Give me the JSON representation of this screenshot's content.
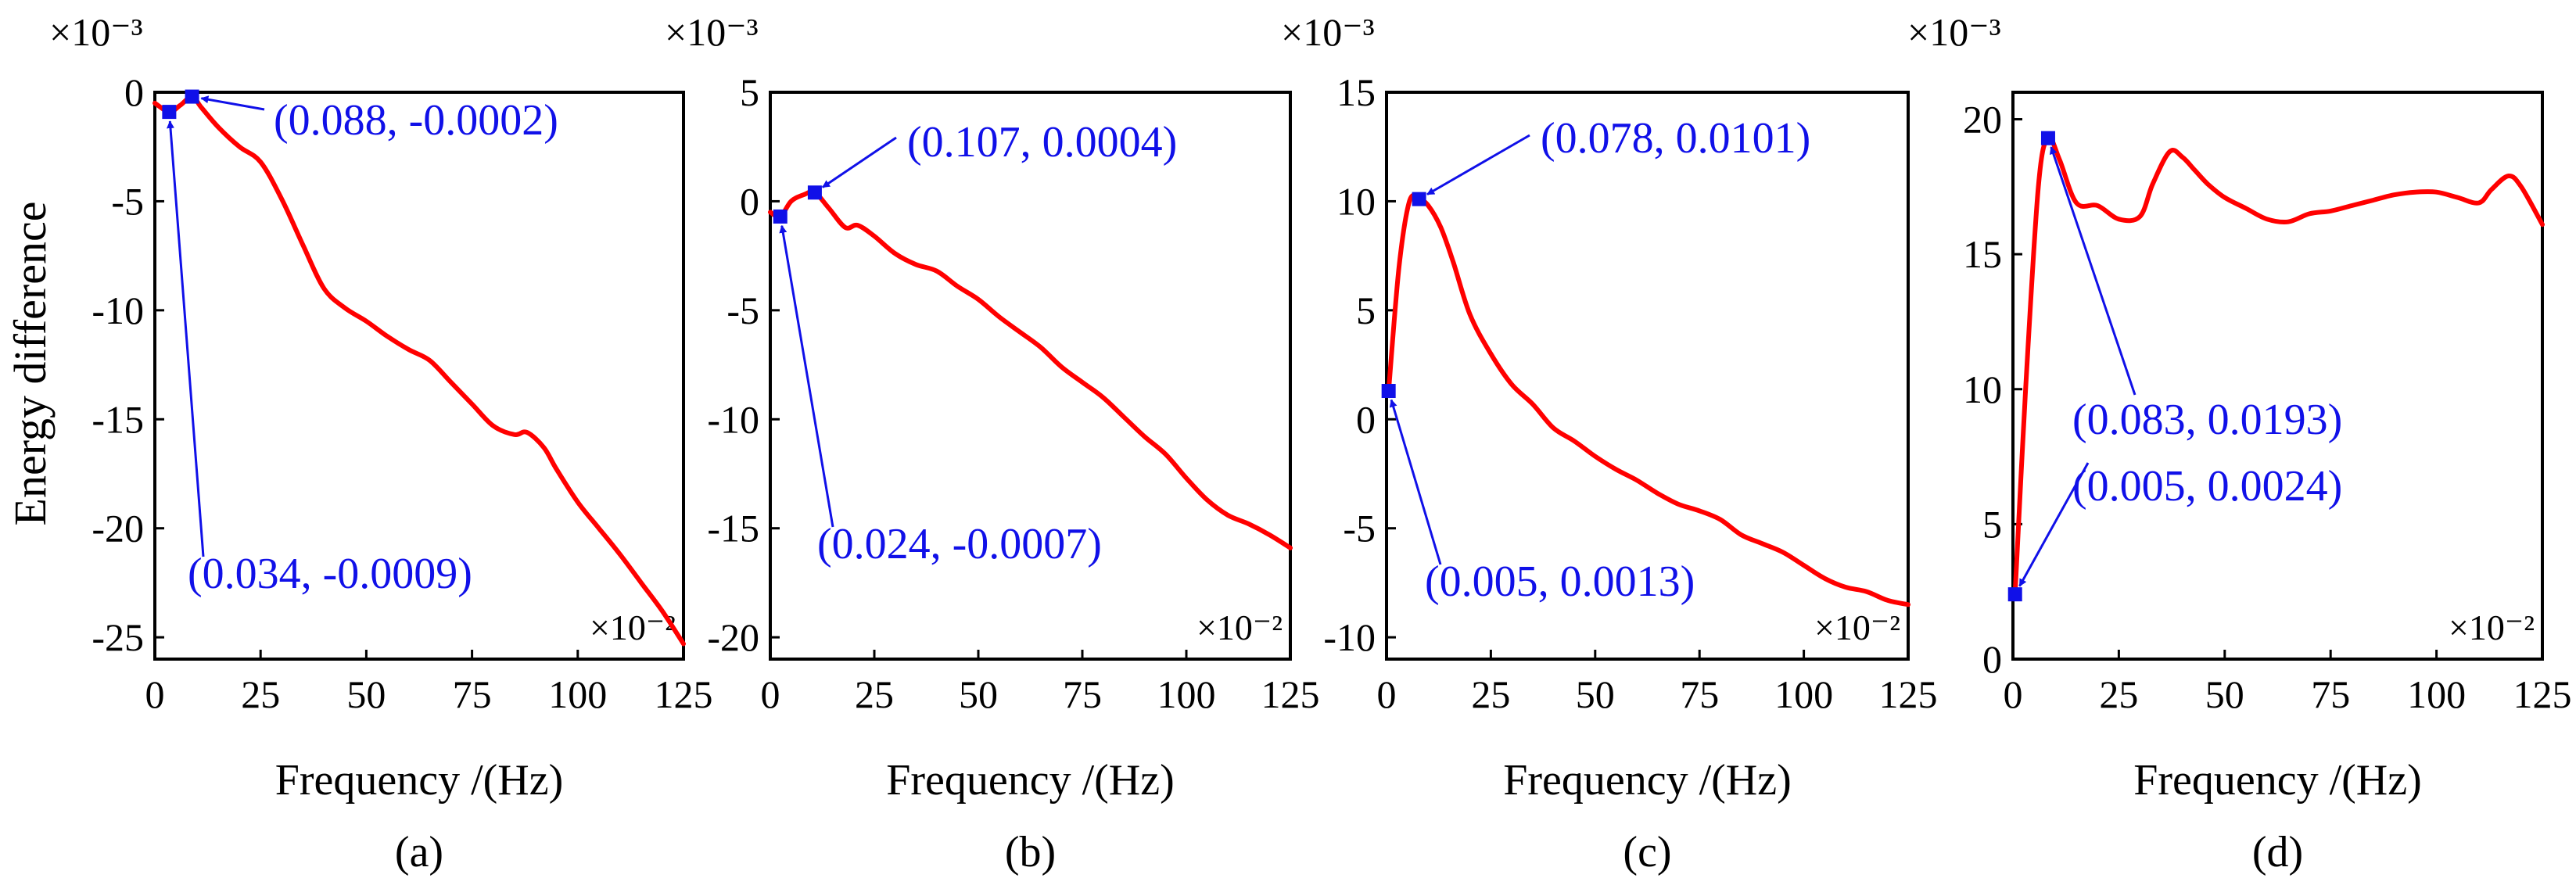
{
  "figure": {
    "ylabel": "Energy difference",
    "colors": {
      "curve": "#ff0000",
      "annotation": "#1010e8",
      "axis": "#000000"
    }
  },
  "chart_data": [
    {
      "type": "line",
      "panel_label": "(a)",
      "xlabel": "Frequency /(Hz)",
      "x_multiplier": "×10⁻²",
      "y_multiplier": "×10⁻³",
      "xlim": [
        0,
        125
      ],
      "ylim": [
        -26,
        0
      ],
      "xticks": [
        0,
        25,
        50,
        75,
        100,
        125
      ],
      "yticks": [
        0,
        -5,
        -10,
        -15,
        -20,
        -25
      ],
      "series": [
        {
          "name": "Energy difference",
          "x": [
            0,
            3.4,
            6,
            8.8,
            11,
            15,
            20,
            25,
            30,
            35,
            40,
            45,
            50,
            55,
            60,
            65,
            70,
            75,
            80,
            85,
            88,
            92,
            95,
            100,
            105,
            110,
            115,
            120,
            125
          ],
          "y": [
            -0.5,
            -0.9,
            -0.6,
            -0.2,
            -0.7,
            -1.6,
            -2.5,
            -3.2,
            -4.9,
            -7.0,
            -9.0,
            -9.9,
            -10.5,
            -11.2,
            -11.8,
            -12.3,
            -13.3,
            -14.3,
            -15.3,
            -15.7,
            -15.6,
            -16.3,
            -17.3,
            -18.8,
            -20.0,
            -21.2,
            -22.5,
            -23.8,
            -25.3
          ]
        }
      ],
      "markers": [
        {
          "x": 3.4,
          "y": -0.9,
          "label": "(0.034, -0.0009)"
        },
        {
          "x": 8.8,
          "y": -0.2,
          "label": "(0.088, -0.0002)"
        }
      ]
    },
    {
      "type": "line",
      "panel_label": "(b)",
      "xlabel": "Frequency /(Hz)",
      "x_multiplier": "×10⁻²",
      "y_multiplier": "×10⁻³",
      "xlim": [
        0,
        125
      ],
      "ylim": [
        -21,
        5
      ],
      "xticks": [
        0,
        25,
        50,
        75,
        100,
        125
      ],
      "yticks": [
        5,
        0,
        -5,
        -10,
        -15,
        -20
      ],
      "series": [
        {
          "name": "Energy difference",
          "x": [
            0,
            2.4,
            5,
            8,
            10.7,
            14,
            18,
            21,
            25,
            30,
            35,
            40,
            45,
            50,
            55,
            60,
            65,
            70,
            75,
            80,
            85,
            90,
            95,
            100,
            105,
            110,
            115,
            120,
            125
          ],
          "y": [
            -0.5,
            -0.7,
            0,
            0.3,
            0.4,
            -0.3,
            -1.2,
            -1.1,
            -1.6,
            -2.4,
            -2.9,
            -3.2,
            -3.9,
            -4.5,
            -5.3,
            -6.0,
            -6.7,
            -7.6,
            -8.3,
            -9.0,
            -9.9,
            -10.8,
            -11.6,
            -12.7,
            -13.7,
            -14.4,
            -14.8,
            -15.3,
            -15.9
          ]
        }
      ],
      "markers": [
        {
          "x": 2.4,
          "y": -0.7,
          "label": "(0.024, -0.0007)"
        },
        {
          "x": 10.7,
          "y": 0.4,
          "label": "(0.107, 0.0004)"
        }
      ]
    },
    {
      "type": "line",
      "panel_label": "(c)",
      "xlabel": "Frequency /(Hz)",
      "x_multiplier": "×10⁻²",
      "y_multiplier": "×10⁻³",
      "xlim": [
        0,
        125
      ],
      "ylim": [
        -11,
        15
      ],
      "xticks": [
        0,
        25,
        50,
        75,
        100,
        125
      ],
      "yticks": [
        15,
        10,
        5,
        0,
        -5,
        -10
      ],
      "series": [
        {
          "name": "Energy difference",
          "x": [
            0.5,
            3,
            5.5,
            7.8,
            10,
            13,
            16,
            20,
            25,
            30,
            35,
            40,
            45,
            50,
            55,
            60,
            65,
            70,
            75,
            80,
            85,
            90,
            95,
            100,
            105,
            110,
            115,
            120,
            125
          ],
          "y": [
            1.3,
            7.0,
            10.0,
            10.1,
            9.8,
            8.8,
            7.2,
            4.8,
            3.0,
            1.6,
            0.7,
            -0.4,
            -1.0,
            -1.7,
            -2.3,
            -2.8,
            -3.4,
            -3.9,
            -4.2,
            -4.6,
            -5.3,
            -5.7,
            -6.1,
            -6.7,
            -7.3,
            -7.7,
            -7.9,
            -8.3,
            -8.5
          ]
        }
      ],
      "markers": [
        {
          "x": 0.5,
          "y": 1.3,
          "label": "(0.005, 0.0013)"
        },
        {
          "x": 7.8,
          "y": 10.1,
          "label": "(0.078, 0.0101)"
        }
      ]
    },
    {
      "type": "line",
      "panel_label": "(d)",
      "xlabel": "Frequency /(Hz)",
      "x_multiplier": "×10⁻²",
      "y_multiplier": "×10⁻³",
      "xlim": [
        0,
        125
      ],
      "ylim": [
        0,
        21
      ],
      "xticks": [
        0,
        25,
        50,
        75,
        100,
        125
      ],
      "yticks": [
        20,
        15,
        10,
        5,
        0
      ],
      "series": [
        {
          "name": "Energy difference",
          "x": [
            0.5,
            3,
            6,
            8.3,
            11,
            15,
            20,
            25,
            30,
            33,
            37,
            40,
            43,
            46,
            50,
            55,
            60,
            65,
            70,
            75,
            80,
            85,
            90,
            95,
            100,
            105,
            110,
            113,
            117,
            120,
            125
          ],
          "y": [
            2.4,
            10.0,
            17.5,
            19.3,
            18.5,
            16.9,
            16.8,
            16.3,
            16.4,
            17.6,
            18.8,
            18.6,
            18.1,
            17.6,
            17.1,
            16.7,
            16.3,
            16.2,
            16.5,
            16.6,
            16.8,
            17.0,
            17.2,
            17.3,
            17.3,
            17.1,
            16.9,
            17.4,
            17.9,
            17.5,
            16.1
          ]
        }
      ],
      "markers": [
        {
          "x": 0.5,
          "y": 2.4,
          "label": "(0.005, 0.0024)"
        },
        {
          "x": 8.3,
          "y": 19.3,
          "label": "(0.083, 0.0193)"
        }
      ]
    }
  ]
}
